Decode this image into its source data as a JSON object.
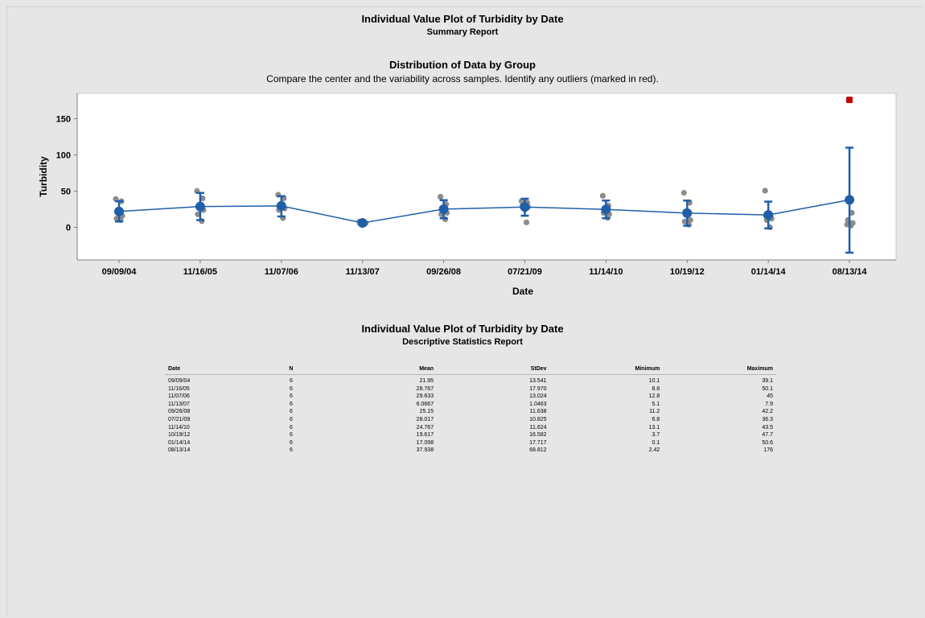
{
  "report": {
    "title": "Individual Value Plot of Turbidity by Date",
    "subtitle": "Summary Report",
    "section_title": "Distribution of Data by Group",
    "section_desc": "Compare the center and the variability across samples. Identify any outliers (marked in red).",
    "table_title": "Individual Value Plot of Turbidity by Date",
    "table_subtitle": "Descriptive Statistics Report"
  },
  "colors": {
    "background": "#e6e6e6",
    "plot_bg": "#ffffff",
    "mean_line": "#1f5fa8",
    "points": "#8c8c8c",
    "outlier": "#c00000"
  },
  "chart_data": {
    "type": "scatter",
    "title": "Distribution of Data by Group",
    "xlabel": "Date",
    "ylabel": "Turbidity",
    "ylim": [
      -45,
      185
    ],
    "yticks": [
      0,
      50,
      100,
      150
    ],
    "grid": false,
    "categories": [
      "09/09/04",
      "11/16/05",
      "11/07/06",
      "11/13/07",
      "09/26/08",
      "07/21/09",
      "11/14/10",
      "10/19/12",
      "01/14/14",
      "08/13/14"
    ],
    "points": [
      [
        39.1,
        36,
        22,
        16,
        12,
        10.1
      ],
      [
        50.1,
        40,
        30,
        24,
        18,
        8.6
      ],
      [
        45,
        40,
        30,
        26,
        24,
        12.8
      ],
      [
        7.9,
        6.5,
        6,
        5.8,
        5.2,
        5.1
      ],
      [
        42.2,
        32,
        26,
        20,
        18,
        11.2
      ],
      [
        36.3,
        34,
        32,
        28,
        30,
        6.8
      ],
      [
        43.5,
        30,
        24,
        18,
        20,
        13.1
      ],
      [
        47.7,
        34,
        22,
        10,
        8,
        3.7
      ],
      [
        50.6,
        14,
        10,
        12,
        16,
        0.1
      ],
      [
        176,
        20,
        10,
        6,
        4,
        2.42
      ]
    ],
    "outliers": [
      {
        "category": "08/13/14",
        "value": 176
      }
    ],
    "series": [
      {
        "name": "Mean",
        "values": [
          21.95,
          28.767,
          29.633,
          6.0667,
          25.15,
          28.017,
          24.767,
          19.617,
          17.098,
          37.938
        ]
      }
    ],
    "ci_low": [
      8,
      10,
      15,
      4.5,
      12.5,
      16,
      12.5,
      2.2,
      -1.5,
      -35
    ],
    "ci_high": [
      36,
      47.5,
      43,
      7.2,
      37.5,
      39.5,
      37,
      37,
      35.5,
      110
    ]
  },
  "table": {
    "headers": [
      "Date",
      "N",
      "Mean",
      "StDev",
      "Minimum",
      "Maximum"
    ],
    "rows": [
      [
        "09/09/04",
        "6",
        "21.95",
        "13.541",
        "10.1",
        "39.1"
      ],
      [
        "11/16/05",
        "6",
        "28.767",
        "17.970",
        "8.6",
        "50.1"
      ],
      [
        "11/07/06",
        "6",
        "29.633",
        "13.024",
        "12.8",
        "45"
      ],
      [
        "11/13/07",
        "6",
        "6.0667",
        "1.0463",
        "5.1",
        "7.9"
      ],
      [
        "09/26/08",
        "6",
        "25.15",
        "11.638",
        "11.2",
        "42.2"
      ],
      [
        "07/21/09",
        "6",
        "28.017",
        "10.825",
        "6.8",
        "36.3"
      ],
      [
        "11/14/10",
        "6",
        "24.767",
        "11.624",
        "13.1",
        "43.5"
      ],
      [
        "10/19/12",
        "6",
        "19.617",
        "16.582",
        "3.7",
        "47.7"
      ],
      [
        "01/14/14",
        "6",
        "17.098",
        "17.717",
        "0.1",
        "50.6"
      ],
      [
        "08/13/14",
        "6",
        "37.938",
        "68.812",
        "2.42",
        "176"
      ]
    ]
  }
}
